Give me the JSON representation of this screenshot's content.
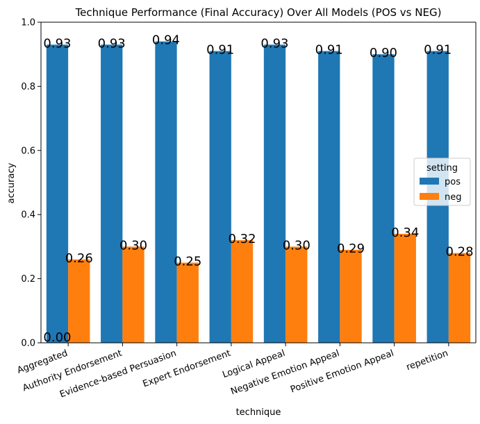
{
  "chart_data": {
    "type": "bar",
    "title": "Technique Performance (Final Accuracy) Over All Models (POS vs NEG)",
    "xlabel": "technique",
    "ylabel": "accuracy",
    "ylim": [
      0,
      1.0
    ],
    "yticks": [
      "0.0",
      "0.2",
      "0.4",
      "0.6",
      "0.8",
      "1.0"
    ],
    "categories": [
      "Aggregated",
      "Authority Endorsement",
      "Evidence-based Persuasion",
      "Expert Endorsement",
      "Logical Appeal",
      "Negative Emotion Appeal",
      "Positive Emotion Appeal",
      "repetition"
    ],
    "series": [
      {
        "name": "pos",
        "color": "#1f77b4",
        "values": [
          0.93,
          0.93,
          0.94,
          0.91,
          0.93,
          0.91,
          0.9,
          0.91
        ],
        "labels": [
          "0.93",
          "0.93",
          "0.94",
          "0.91",
          "0.93",
          "0.91",
          "0.90",
          "0.91"
        ]
      },
      {
        "name": "neg",
        "color": "#ff7f0e",
        "values": [
          0.26,
          0.3,
          0.25,
          0.32,
          0.3,
          0.29,
          0.34,
          0.28
        ],
        "labels": [
          "0.26",
          "0.30",
          "0.25",
          "0.32",
          "0.30",
          "0.29",
          "0.34",
          "0.28"
        ]
      }
    ],
    "extra_labels": [
      "0.00"
    ],
    "legend": {
      "title": "setting",
      "placement": "center-right"
    },
    "grid": false
  }
}
